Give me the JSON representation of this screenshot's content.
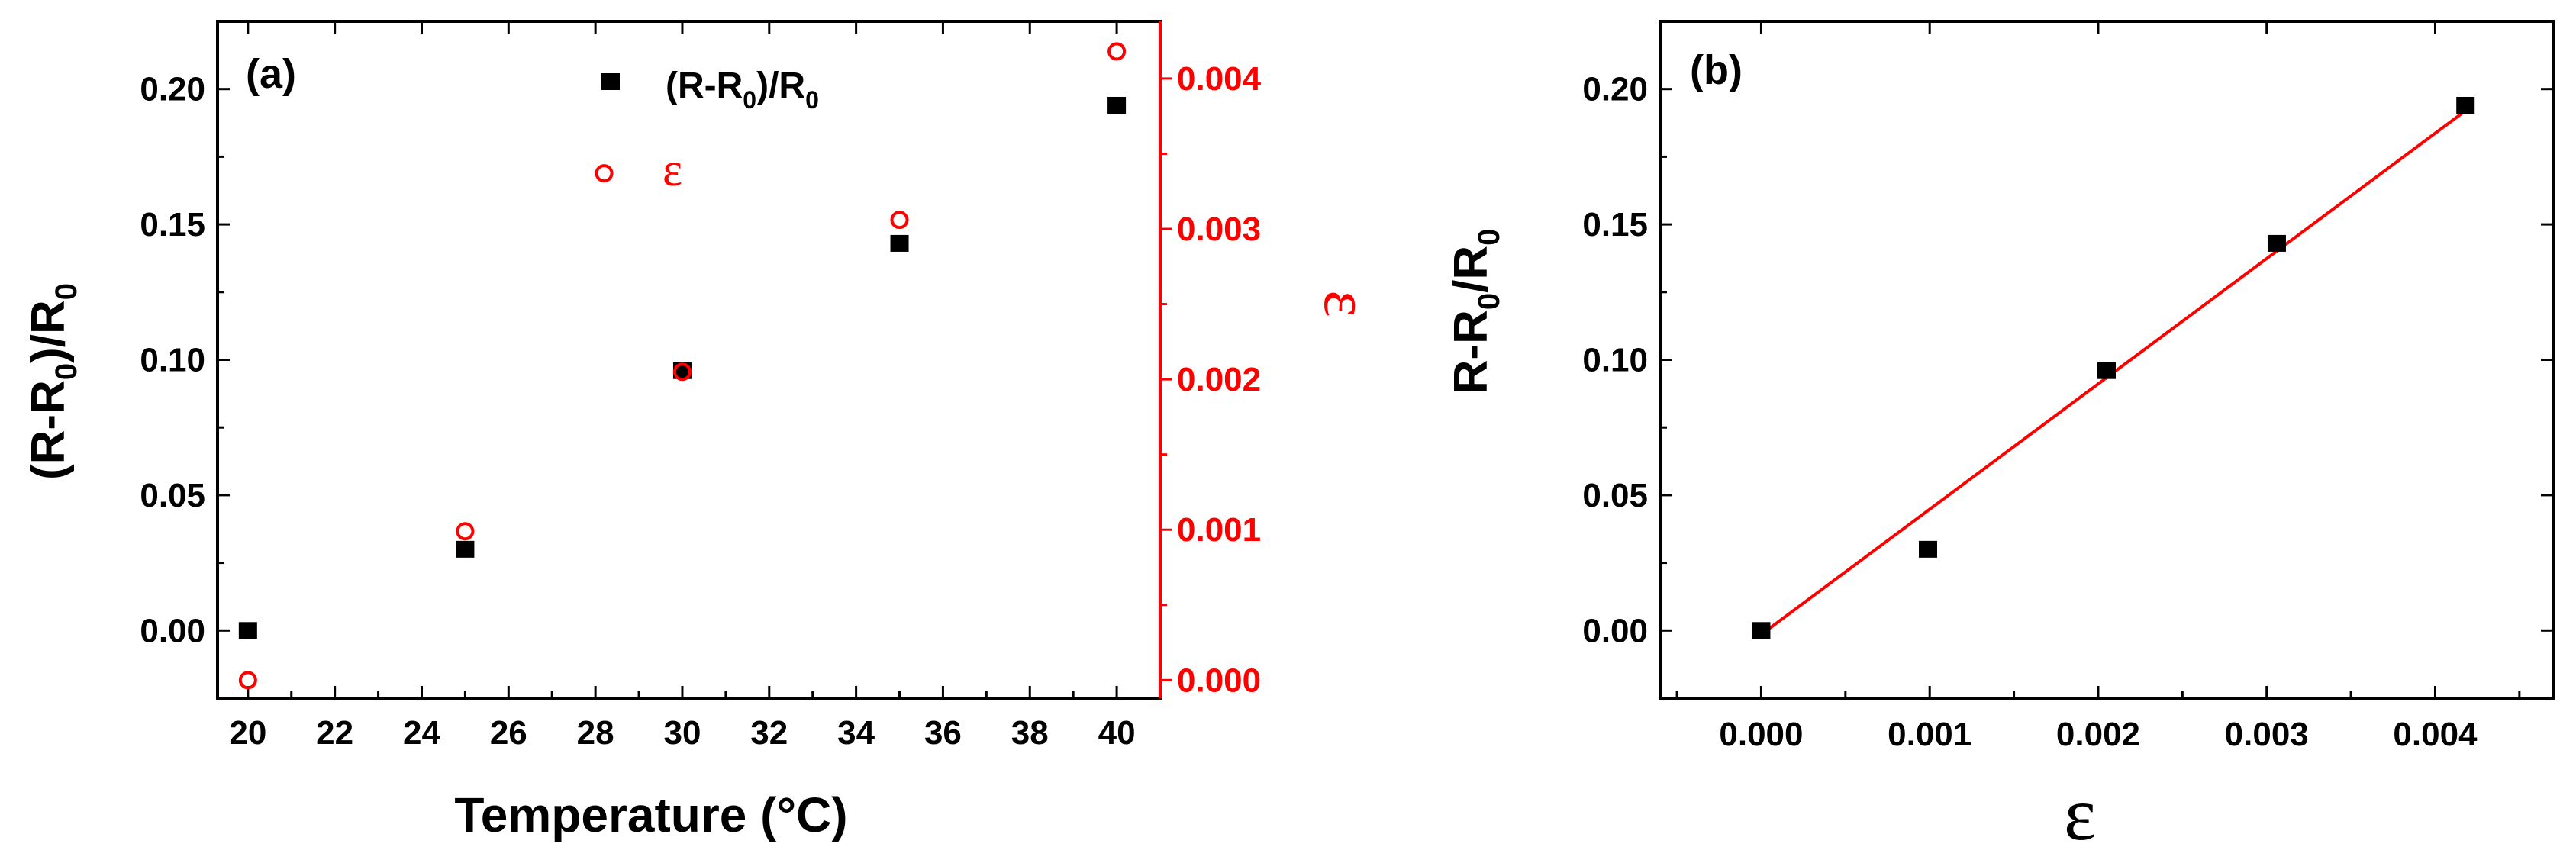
{
  "colors": {
    "black": "#000000",
    "red": "#ff0000"
  },
  "chart_data": [
    {
      "panel_label": "(a)",
      "type": "scatter",
      "xlabel": "Temperature (°C)",
      "ylabel_left_parts": {
        "a": "(R-R",
        "sub1": "0",
        "b": ")/R",
        "sub2": "0"
      },
      "ylabel_right": "ε",
      "xlim": [
        19.3,
        41.0
      ],
      "xticks": [
        "20",
        "22",
        "24",
        "26",
        "28",
        "30",
        "32",
        "34",
        "36",
        "38",
        "40"
      ],
      "ylim_left": [
        -0.025,
        0.225
      ],
      "yticks_left": [
        "0.00",
        "0.05",
        "0.10",
        "0.15",
        "0.20"
      ],
      "ylim_right": [
        -0.00012,
        0.00438
      ],
      "yticks_right": [
        "0.000",
        "0.001",
        "0.002",
        "0.003",
        "0.004"
      ],
      "legend_parts": {
        "a": "(R-R",
        "sub1": "0",
        "b": ")/R",
        "sub2": "0"
      },
      "annotation_epsilon": "ε",
      "series": [
        {
          "name": "(R-R0)/R0",
          "axis": "left",
          "marker": "filled-square",
          "color": "#000000",
          "x": [
            20,
            25,
            30,
            35,
            40
          ],
          "y": [
            0.0,
            0.03,
            0.096,
            0.143,
            0.194
          ]
        },
        {
          "name": "ε",
          "axis": "right",
          "marker": "open-circle",
          "color": "#ff0000",
          "x": [
            20,
            25,
            28.2,
            30,
            35,
            40
          ],
          "y": [
            0.0,
            0.00099,
            0.00337,
            0.00205,
            0.00306,
            0.00418
          ]
        }
      ]
    },
    {
      "panel_label": "(b)",
      "type": "scatter",
      "xlabel": "ε",
      "ylabel_parts": {
        "a": "R-R",
        "sub1": "0",
        "b": "/R",
        "sub2": "0"
      },
      "xlim": [
        -0.0006,
        0.0047
      ],
      "xticks": [
        "0.000",
        "0.001",
        "0.002",
        "0.003",
        "0.004"
      ],
      "ylim": [
        -0.025,
        0.225
      ],
      "yticks": [
        "0.00",
        "0.05",
        "0.10",
        "0.15",
        "0.20"
      ],
      "series": [
        {
          "marker": "filled-square",
          "color": "#000000",
          "x": [
            0.0,
            0.00099,
            0.00205,
            0.00306,
            0.00418
          ],
          "y": [
            0.0,
            0.03,
            0.096,
            0.143,
            0.194
          ]
        }
      ],
      "fit_line": {
        "color": "#ff0000",
        "x": [
          0.0,
          0.00418
        ],
        "y": [
          -0.0015,
          0.192
        ]
      }
    }
  ]
}
